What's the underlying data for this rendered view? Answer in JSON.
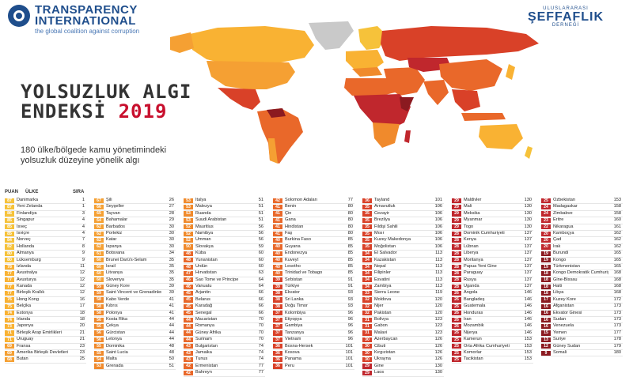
{
  "header": {
    "ti_name_1": "TRANSPARENCY",
    "ti_name_2": "INTERNATIONAL",
    "ti_tagline": "the global coalition against corruption",
    "partner_top": "ULUSLARARASI",
    "partner_main": "ŞEFFAFLIK",
    "partner_bottom": "DERNEĞİ"
  },
  "title": {
    "line1": "YOLSUZLUK ALGI",
    "line2": "ENDEKSİ",
    "year": "2019"
  },
  "description": "180 ülke/bölgede kamu yönetimindeki yolsuzluk düzeyine yönelik algı",
  "table_headers": {
    "score": "PUAN",
    "country": "ÜLKE",
    "rank": "SIRA"
  },
  "colors": {
    "s80": "#f6c23a",
    "s70": "#f9b233",
    "s60": "#f5a033",
    "s50": "#f08a2c",
    "s40": "#e9682a",
    "s30": "#d94128",
    "s20": "#c0272d",
    "s10": "#8b1a20",
    "ti_blue": "#1f4e8c",
    "accent_red": "#c8102e"
  },
  "table": [
    [
      [
        "87",
        "Danimarka",
        "1"
      ],
      [
        "87",
        "Yeni Zelanda",
        "1"
      ],
      [
        "86",
        "Finlandiya",
        "3"
      ],
      [
        "85",
        "Singapur",
        "4"
      ],
      [
        "85",
        "İsveç",
        "4"
      ],
      [
        "85",
        "İsviçre",
        "4"
      ],
      [
        "84",
        "Norveç",
        "7"
      ],
      [
        "82",
        "Hollanda",
        "8"
      ],
      [
        "80",
        "Almanya",
        "9"
      ],
      [
        "80",
        "Lüksemburg",
        "9"
      ],
      [
        "78",
        "İzlanda",
        "11"
      ],
      [
        "77",
        "Avustralya",
        "12"
      ],
      [
        "77",
        "Avusturya",
        "12"
      ],
      [
        "77",
        "Kanada",
        "12"
      ],
      [
        "77",
        "Birleşik Krallık",
        "12"
      ],
      [
        "76",
        "Hong Kong",
        "16"
      ],
      [
        "75",
        "Belçika",
        "17"
      ],
      [
        "74",
        "Estonya",
        "18"
      ],
      [
        "74",
        "İrlanda",
        "18"
      ],
      [
        "73",
        "Japonya",
        "20"
      ],
      [
        "71",
        "Birleşik Arap Emirlikleri",
        "21"
      ],
      [
        "71",
        "Uruguay",
        "21"
      ],
      [
        "69",
        "Fransa",
        "23"
      ],
      [
        "69",
        "Amerika Birleşik Devletleri",
        "23"
      ],
      [
        "68",
        "Butan",
        "25"
      ]
    ],
    [
      [
        "67",
        "Şili",
        "26"
      ],
      [
        "66",
        "Seyşeller",
        "27"
      ],
      [
        "65",
        "Tayvan",
        "28"
      ],
      [
        "64",
        "Bahamalar",
        "29"
      ],
      [
        "62",
        "Barbados",
        "30"
      ],
      [
        "62",
        "Portekiz",
        "30"
      ],
      [
        "62",
        "Katar",
        "30"
      ],
      [
        "62",
        "İspanya",
        "30"
      ],
      [
        "61",
        "Botsvana",
        "34"
      ],
      [
        "60",
        "Brunei Darü's-Selam",
        "35"
      ],
      [
        "60",
        "İsrail",
        "35"
      ],
      [
        "60",
        "Litvanya",
        "35"
      ],
      [
        "60",
        "Slovenya",
        "35"
      ],
      [
        "59",
        "Güney Kore",
        "39"
      ],
      [
        "59",
        "Saint Vincent ve Grenadinler",
        "39"
      ],
      [
        "58",
        "Kabo Verde",
        "41"
      ],
      [
        "58",
        "Kıbrıs",
        "41"
      ],
      [
        "58",
        "Polonya",
        "41"
      ],
      [
        "56",
        "Kosta Rika",
        "44"
      ],
      [
        "56",
        "Çekya",
        "44"
      ],
      [
        "56",
        "Gürcistan",
        "44"
      ],
      [
        "56",
        "Letonya",
        "44"
      ],
      [
        "55",
        "Dominika",
        "48"
      ],
      [
        "55",
        "Saint Lucia",
        "48"
      ],
      [
        "54",
        "Malta",
        "50"
      ],
      [
        "53",
        "Grenada",
        "51"
      ]
    ],
    [
      [
        "53",
        "İtalya",
        "51"
      ],
      [
        "53",
        "Malezya",
        "51"
      ],
      [
        "53",
        "Ruanda",
        "51"
      ],
      [
        "53",
        "Suudi Arabistan",
        "51"
      ],
      [
        "52",
        "Mauritius",
        "56"
      ],
      [
        "52",
        "Namibya",
        "56"
      ],
      [
        "52",
        "Umman",
        "56"
      ],
      [
        "50",
        "Slovakya",
        "59"
      ],
      [
        "48",
        "Küba",
        "60"
      ],
      [
        "48",
        "Yunanistan",
        "60"
      ],
      [
        "48",
        "Ürdün",
        "60"
      ],
      [
        "47",
        "Hırvatistan",
        "63"
      ],
      [
        "46",
        "Sao Tome ve Principe",
        "64"
      ],
      [
        "46",
        "Vanuatu",
        "64"
      ],
      [
        "45",
        "Arjantin",
        "66"
      ],
      [
        "45",
        "Belarus",
        "66"
      ],
      [
        "45",
        "Karadağ",
        "66"
      ],
      [
        "45",
        "Senegal",
        "66"
      ],
      [
        "44",
        "Macaristan",
        "70"
      ],
      [
        "44",
        "Romanya",
        "70"
      ],
      [
        "44",
        "Güney Afrika",
        "70"
      ],
      [
        "44",
        "Surinam",
        "70"
      ],
      [
        "43",
        "Bulgaristan",
        "74"
      ],
      [
        "43",
        "Jamaika",
        "74"
      ],
      [
        "43",
        "Tunus",
        "74"
      ],
      [
        "42",
        "Ermenistan",
        "77"
      ],
      [
        "42",
        "Bahreyn",
        "77"
      ]
    ],
    [
      [
        "42",
        "Solomon Adaları",
        "77"
      ],
      [
        "41",
        "Benin",
        "80"
      ],
      [
        "41",
        "Çin",
        "80"
      ],
      [
        "41",
        "Gana",
        "80"
      ],
      [
        "41",
        "Hindistan",
        "80"
      ],
      [
        "41",
        "Faş",
        "80"
      ],
      [
        "40",
        "Burkina Faso",
        "85"
      ],
      [
        "40",
        "Guyana",
        "85"
      ],
      [
        "40",
        "Endonezya",
        "85"
      ],
      [
        "40",
        "Kuveyt",
        "85"
      ],
      [
        "40",
        "Lesotho",
        "85"
      ],
      [
        "40",
        "Trinidad ve Tobago",
        "85"
      ],
      [
        "39",
        "Sırbistan",
        "91"
      ],
      [
        "39",
        "Türkiye",
        "91"
      ],
      [
        "38",
        "Ekvator",
        "93"
      ],
      [
        "38",
        "Sri Lanka",
        "93"
      ],
      [
        "38",
        "Doğu Timor",
        "93"
      ],
      [
        "37",
        "Kolombiya",
        "96"
      ],
      [
        "37",
        "Etiyopya",
        "96"
      ],
      [
        "37",
        "Gambiya",
        "96"
      ],
      [
        "37",
        "Tanzanya",
        "96"
      ],
      [
        "37",
        "Vietnam",
        "96"
      ],
      [
        "36",
        "Bosna-Hersek",
        "101"
      ],
      [
        "36",
        "Kosova",
        "101"
      ],
      [
        "36",
        "Panama",
        "101"
      ],
      [
        "36",
        "Peru",
        "101"
      ]
    ],
    [
      [
        "36",
        "Tayland",
        "101"
      ],
      [
        "35",
        "Arnavutluk",
        "106"
      ],
      [
        "35",
        "Cezayir",
        "106"
      ],
      [
        "35",
        "Brezilya",
        "106"
      ],
      [
        "35",
        "Fildişi Sahili",
        "106"
      ],
      [
        "35",
        "Mısır",
        "106"
      ],
      [
        "35",
        "Kuzey Makedonya",
        "106"
      ],
      [
        "35",
        "Moğolistan",
        "106"
      ],
      [
        "34",
        "El Salvador",
        "113"
      ],
      [
        "34",
        "Kazakistan",
        "113"
      ],
      [
        "34",
        "Nepal",
        "113"
      ],
      [
        "34",
        "Filipinler",
        "113"
      ],
      [
        "34",
        "Esvatini",
        "113"
      ],
      [
        "34",
        "Zambiya",
        "113"
      ],
      [
        "33",
        "Sierra Leone",
        "119"
      ],
      [
        "32",
        "Moldova",
        "120"
      ],
      [
        "32",
        "Nijer",
        "120"
      ],
      [
        "32",
        "Pakistan",
        "120"
      ],
      [
        "31",
        "Bolivya",
        "123"
      ],
      [
        "31",
        "Gabon",
        "123"
      ],
      [
        "31",
        "Malavi",
        "123"
      ],
      [
        "30",
        "Azerbaycan",
        "126"
      ],
      [
        "30",
        "Cibuti",
        "126"
      ],
      [
        "30",
        "Kırgızistan",
        "126"
      ],
      [
        "30",
        "Ukrayna",
        "126"
      ],
      [
        "29",
        "Gine",
        "130"
      ],
      [
        "29",
        "Laos",
        "130"
      ]
    ],
    [
      [
        "29",
        "Maldivler",
        "130"
      ],
      [
        "29",
        "Mali",
        "130"
      ],
      [
        "29",
        "Meksika",
        "130"
      ],
      [
        "29",
        "Myanmar",
        "130"
      ],
      [
        "29",
        "Togo",
        "130"
      ],
      [
        "28",
        "Dominik Cumhuriyeti",
        "137"
      ],
      [
        "28",
        "Kenya",
        "137"
      ],
      [
        "28",
        "Lübnan",
        "137"
      ],
      [
        "28",
        "Liberya",
        "137"
      ],
      [
        "28",
        "Moritanya",
        "137"
      ],
      [
        "28",
        "Papua Yeni Gine",
        "137"
      ],
      [
        "28",
        "Paraguay",
        "137"
      ],
      [
        "28",
        "Rusya",
        "137"
      ],
      [
        "28",
        "Uganda",
        "137"
      ],
      [
        "26",
        "Angola",
        "146"
      ],
      [
        "26",
        "Bangladeş",
        "146"
      ],
      [
        "26",
        "Guatemala",
        "146"
      ],
      [
        "26",
        "Honduras",
        "146"
      ],
      [
        "26",
        "İran",
        "146"
      ],
      [
        "26",
        "Mozambik",
        "146"
      ],
      [
        "26",
        "Nijerya",
        "146"
      ],
      [
        "25",
        "Kamerun",
        "153"
      ],
      [
        "25",
        "Orta Afrika Cumhuriyeti",
        "153"
      ],
      [
        "25",
        "Komorlar",
        "153"
      ],
      [
        "25",
        "Tacikistan",
        "153"
      ]
    ],
    [
      [
        "25",
        "Özbekistan",
        "153"
      ],
      [
        "24",
        "Madagaskar",
        "158"
      ],
      [
        "24",
        "Zimbabve",
        "158"
      ],
      [
        "23",
        "Eritre",
        "160"
      ],
      [
        "22",
        "Nikaragua",
        "161"
      ],
      [
        "20",
        "Kamboçya",
        "162"
      ],
      [
        "20",
        "Çad",
        "162"
      ],
      [
        "20",
        "Irak",
        "162"
      ],
      [
        "19",
        "Burundi",
        "165"
      ],
      [
        "19",
        "Kongo",
        "165"
      ],
      [
        "19",
        "Türkmenistan",
        "165"
      ],
      [
        "18",
        "Kongo Demokratik Cumhuriyeti",
        "168"
      ],
      [
        "18",
        "Gine-Bissau",
        "168"
      ],
      [
        "18",
        "Haiti",
        "168"
      ],
      [
        "18",
        "Libya",
        "168"
      ],
      [
        "17",
        "Kuzey Kore",
        "172"
      ],
      [
        "16",
        "Afganistan",
        "173"
      ],
      [
        "16",
        "Ekvator Ginesi",
        "173"
      ],
      [
        "16",
        "Sudan",
        "173"
      ],
      [
        "16",
        "Venezuela",
        "173"
      ],
      [
        "15",
        "Yemen",
        "177"
      ],
      [
        "13",
        "Suriye",
        "178"
      ],
      [
        "12",
        "Güney Sudan",
        "179"
      ],
      [
        "9",
        "Somali",
        "180"
      ]
    ]
  ]
}
